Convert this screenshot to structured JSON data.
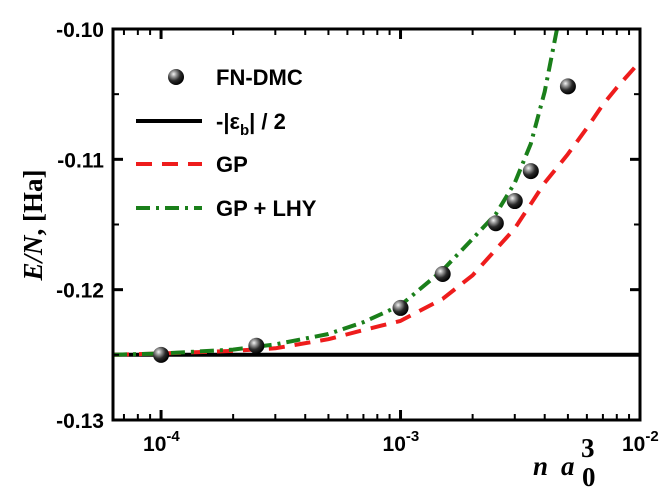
{
  "chart_data": {
    "type": "line",
    "x_scale": "log",
    "xlim": [
      6.3e-05,
      0.01
    ],
    "ylim": [
      -0.13,
      -0.1
    ],
    "grid": false,
    "legend_position": "top-left",
    "xlabel": {
      "n": "n",
      "a": "a",
      "sub": "0",
      "sup": "3"
    },
    "ylabel": {
      "main": "E/N",
      "unit": ", [Ha]"
    },
    "y_ticks": [
      {
        "value": -0.13,
        "label": "-0.13"
      },
      {
        "value": -0.12,
        "label": "-0.12"
      },
      {
        "value": -0.11,
        "label": "-0.11"
      },
      {
        "value": -0.1,
        "label": "-0.10"
      }
    ],
    "x_ticks": [
      {
        "value": 0.0001,
        "base": "10",
        "exp": "-4"
      },
      {
        "value": 0.001,
        "base": "10",
        "exp": "-3"
      },
      {
        "value": 0.01,
        "base": "10",
        "exp": "-2"
      }
    ],
    "series": [
      {
        "name": "FN-DMC",
        "style": "markers",
        "color": "#111111",
        "points": [
          {
            "x": 0.0001,
            "y": -0.125
          },
          {
            "x": 0.00025,
            "y": -0.1243
          },
          {
            "x": 0.001,
            "y": -0.1214
          },
          {
            "x": 0.0015,
            "y": -0.1188
          },
          {
            "x": 0.0025,
            "y": -0.1149
          },
          {
            "x": 0.003,
            "y": -0.1132
          },
          {
            "x": 0.0035,
            "y": -0.1109
          },
          {
            "x": 0.005,
            "y": -0.1044
          }
        ]
      },
      {
        "name": "-|εb| / 2",
        "legend_main": "-|ε",
        "legend_sub": "b",
        "legend_tail": "| / 2",
        "style": "solid",
        "color": "#000000",
        "points": [
          {
            "x": 6.3e-05,
            "y": -0.125
          },
          {
            "x": 0.01,
            "y": -0.125
          }
        ]
      },
      {
        "name": "GP",
        "style": "dashed",
        "color": "#ee1c1c",
        "points": [
          {
            "x": 6.3e-05,
            "y": -0.125
          },
          {
            "x": 0.0001,
            "y": -0.1249
          },
          {
            "x": 0.0002,
            "y": -0.1247
          },
          {
            "x": 0.0003,
            "y": -0.1245
          },
          {
            "x": 0.0005,
            "y": -0.1238
          },
          {
            "x": 0.0007,
            "y": -0.1231
          },
          {
            "x": 0.001,
            "y": -0.1224
          },
          {
            "x": 0.0015,
            "y": -0.1207
          },
          {
            "x": 0.002,
            "y": -0.1189
          },
          {
            "x": 0.003,
            "y": -0.1153
          },
          {
            "x": 0.004,
            "y": -0.1118
          },
          {
            "x": 0.005,
            "y": -0.1096
          },
          {
            "x": 0.006,
            "y": -0.1076
          },
          {
            "x": 0.007,
            "y": -0.1058
          },
          {
            "x": 0.008,
            "y": -0.1045
          },
          {
            "x": 0.01,
            "y": -0.1025
          }
        ]
      },
      {
        "name": "GP + LHY",
        "style": "dashdot",
        "color": "#1a7f1a",
        "points": [
          {
            "x": 6.3e-05,
            "y": -0.125
          },
          {
            "x": 0.0001,
            "y": -0.1249
          },
          {
            "x": 0.0002,
            "y": -0.1246
          },
          {
            "x": 0.0003,
            "y": -0.1242
          },
          {
            "x": 0.0005,
            "y": -0.1234
          },
          {
            "x": 0.0007,
            "y": -0.1225
          },
          {
            "x": 0.001,
            "y": -0.1212
          },
          {
            "x": 0.0015,
            "y": -0.1185
          },
          {
            "x": 0.002,
            "y": -0.1161
          },
          {
            "x": 0.0025,
            "y": -0.1142
          },
          {
            "x": 0.003,
            "y": -0.1118
          },
          {
            "x": 0.0035,
            "y": -0.1088
          },
          {
            "x": 0.004,
            "y": -0.1048
          },
          {
            "x": 0.0045,
            "y": -0.1
          }
        ]
      }
    ]
  }
}
